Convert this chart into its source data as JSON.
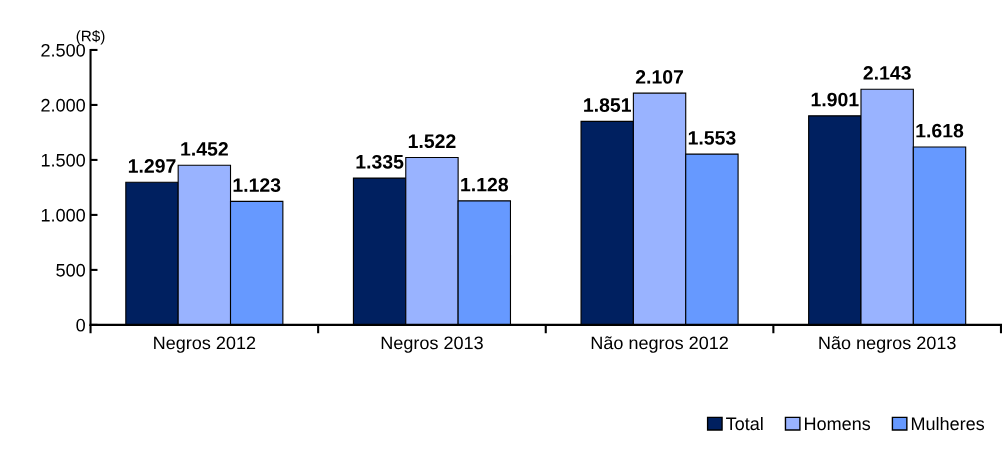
{
  "chart_data": {
    "type": "bar",
    "ylabel": "(R$)",
    "categories": [
      "Negros 2012",
      "Negros 2013",
      "Não negros 2012",
      "Não negros 2013"
    ],
    "series": [
      {
        "name": "Total",
        "color": "#002060",
        "values": [
          1297,
          1335,
          1851,
          1901
        ],
        "value_labels": [
          "1.297",
          "1.335",
          "1.851",
          "1.901"
        ]
      },
      {
        "name": "Homens",
        "color": "#99b3ff",
        "values": [
          1452,
          1522,
          2107,
          2143
        ],
        "value_labels": [
          "1.452",
          "1.522",
          "2.107",
          "2.143"
        ]
      },
      {
        "name": "Mulheres",
        "color": "#6699ff",
        "values": [
          1123,
          1128,
          1553,
          1618
        ],
        "value_labels": [
          "1.123",
          "1.128",
          "1.553",
          "1.618"
        ]
      }
    ],
    "ylim": [
      0,
      2500
    ],
    "yticks": [
      0,
      500,
      {
        "value": 1000,
        "label": "1.000"
      },
      {
        "value": 1500,
        "label": "1.500"
      },
      {
        "value": 2000,
        "label": "2.000"
      },
      {
        "value": 2500,
        "label": "2.500"
      }
    ],
    "grid": false,
    "legend": "bottom right"
  }
}
